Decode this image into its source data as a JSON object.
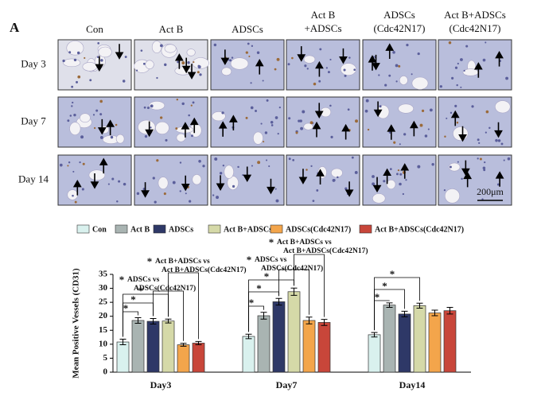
{
  "figure": {
    "panel_label": "A",
    "columns": [
      [
        "Con"
      ],
      [
        "Act B"
      ],
      [
        "ADSCs"
      ],
      [
        "Act B",
        "+ADSCs"
      ],
      [
        "ADSCs",
        "(Cdc42N17)"
      ],
      [
        "Act B+ADSCs",
        "(Cdc42N17)"
      ]
    ],
    "rows": [
      "Day 3",
      "Day 7",
      "Day 14"
    ],
    "scale_bar": "200μm"
  },
  "chart_data": {
    "type": "bar",
    "categories": [
      "Day3",
      "Day7",
      "Day14"
    ],
    "series": [
      {
        "name": "Con",
        "color": "#d9f1ee",
        "values": [
          10.8,
          12.8,
          13.4
        ],
        "errors": [
          1.0,
          0.8,
          0.8
        ]
      },
      {
        "name": "Act B",
        "color": "#a9b4b2",
        "values": [
          18.5,
          20.2,
          24.0
        ],
        "errors": [
          1.0,
          1.2,
          0.8
        ]
      },
      {
        "name": "ADSCs",
        "color": "#2e3867",
        "values": [
          18.2,
          25.2,
          20.8
        ],
        "errors": [
          1.0,
          1.2,
          1.0
        ]
      },
      {
        "name": "Act B+ADSCs",
        "color": "#d5d9a8",
        "values": [
          18.3,
          28.8,
          23.8
        ],
        "errors": [
          0.7,
          1.3,
          0.9
        ]
      },
      {
        "name": "ADSCs(Cdc42N17)",
        "color": "#f3a54b",
        "values": [
          9.8,
          18.5,
          21.2
        ],
        "errors": [
          0.5,
          1.2,
          1.0
        ]
      },
      {
        "name": "Act B+ADSCs(Cdc42N17)",
        "color": "#c8463a",
        "values": [
          10.4,
          17.8,
          22.0
        ],
        "errors": [
          0.6,
          1.1,
          1.2
        ]
      }
    ],
    "ylabel": "Mean Positive Vessels (CD31)",
    "ylim": [
      0,
      35
    ],
    "yticks": [
      0,
      5,
      10,
      15,
      20,
      25,
      30,
      35
    ],
    "significance_marker": "*",
    "annotations": [
      {
        "lines": [
          "ADSCs vs",
          "ADSCs(Cdc42N17)"
        ]
      },
      {
        "lines": [
          "Act B+ADSCs vs",
          "Act B+ADSCs(Cdc42N17)"
        ]
      },
      {
        "lines": [
          "ADSCs vs",
          "ADSCs(Cdc42N17)"
        ]
      },
      {
        "lines": [
          "Act B+ADSCs vs",
          "Act B+ADSCs(Cdc42N17)"
        ]
      }
    ]
  }
}
